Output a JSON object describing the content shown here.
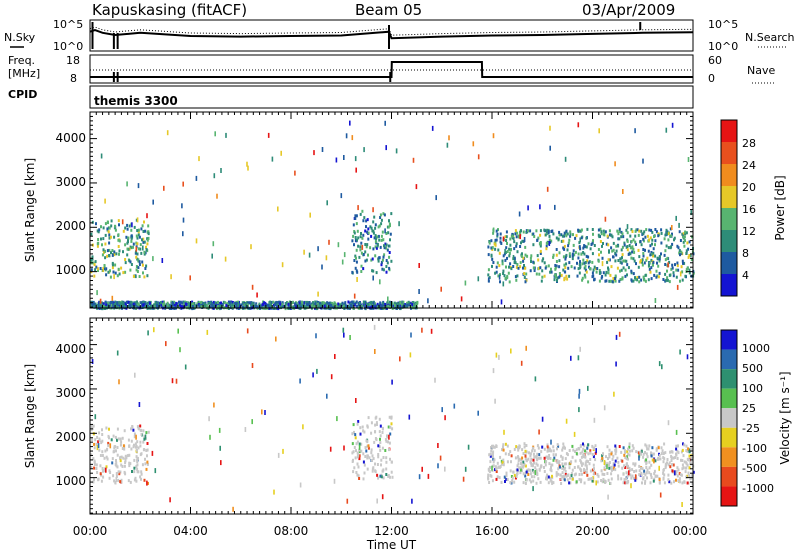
{
  "header": {
    "station": "Kapuskasing (fitACF)",
    "beam": "Beam 05",
    "date": "03/Apr/2009"
  },
  "top_panel": {
    "left_label": "N.Sky",
    "right_label": "N.Search",
    "left_ticks": [
      "10^5",
      "10^0"
    ],
    "right_ticks": [
      "10^5",
      "10^0"
    ]
  },
  "freq_panel": {
    "left_label_1": "Freq.",
    "left_label_2": "[MHz]",
    "right_label": "Nave",
    "left_ticks": [
      "18",
      "8"
    ],
    "right_ticks": [
      "60",
      "0"
    ]
  },
  "cpid": {
    "label": "CPID",
    "program": "themis 3300"
  },
  "power_panel": {
    "ylabel": "Slant Range [km]",
    "yticks": [
      "1000",
      "2000",
      "3000",
      "4000"
    ],
    "colorbar_label": "Power [dB]",
    "colorbar_ticks": [
      "4",
      "8",
      "12",
      "16",
      "20",
      "24",
      "28"
    ]
  },
  "velocity_panel": {
    "ylabel": "Slant Range [km]",
    "yticks": [
      "1000",
      "2000",
      "3000",
      "4000"
    ],
    "colorbar_label": "Velocity [m s⁻¹]",
    "colorbar_ticks": [
      "1000",
      "500",
      "100",
      "25",
      "-25",
      "-100",
      "-500",
      "-1000"
    ]
  },
  "xaxis": {
    "label": "Time UT",
    "ticks": [
      "00:00",
      "04:00",
      "08:00",
      "12:00",
      "16:00",
      "20:00",
      "00:00"
    ]
  },
  "colors": {
    "power_scale": [
      "#1414d2",
      "#1e5aa0",
      "#2e8c78",
      "#58b470",
      "#e6c828",
      "#f08c1e",
      "#e8501e",
      "#e61414"
    ],
    "velocity_scale": [
      "#1414d2",
      "#2a6ab0",
      "#2e9070",
      "#58c050",
      "#c8c8c8",
      "#e6d020",
      "#f09020",
      "#e84a1e",
      "#e61414"
    ]
  },
  "chart_data": [
    {
      "type": "line",
      "title": "N.Sky / N.Search",
      "x_unit": "hours UT",
      "xlim": [
        0,
        24
      ],
      "series": [
        {
          "name": "N.Sky",
          "x": [
            0,
            0.2,
            0.5,
            1,
            2,
            4,
            6,
            8,
            10,
            11.9,
            12,
            14,
            16,
            18,
            20,
            22,
            24
          ],
          "values": [
            3.2,
            3.5,
            3.0,
            2.6,
            3.0,
            2.4,
            2.3,
            2.4,
            2.5,
            3.2,
            2.0,
            2.3,
            2.5,
            2.6,
            2.8,
            3.0,
            3.1
          ]
        }
      ]
    },
    {
      "type": "line",
      "title": "Freq. / Nave",
      "x_unit": "hours UT",
      "xlim": [
        0,
        24
      ],
      "series": [
        {
          "name": "Freq. [MHz]",
          "x": [
            0,
            12,
            12.01,
            15.6,
            15.61,
            24
          ],
          "values": [
            10,
            10,
            16,
            16,
            10,
            10
          ]
        }
      ]
    },
    {
      "type": "heatmap",
      "title": "Power [dB]",
      "xlabel": "Time UT",
      "ylabel": "Slant Range [km]",
      "xlim": [
        0,
        24
      ],
      "ylim": [
        180,
        4600
      ],
      "clim": [
        0,
        30
      ],
      "regions": [
        {
          "t": [
            0,
            2.3
          ],
          "range": [
            900,
            2200
          ],
          "level": 11
        },
        {
          "t": [
            10.4,
            12.0
          ],
          "range": [
            1000,
            2400
          ],
          "level": 9
        },
        {
          "t": [
            15.8,
            24
          ],
          "range": [
            800,
            2000
          ],
          "level": 10
        },
        {
          "t": [
            0,
            13
          ],
          "range": [
            200,
            350
          ],
          "level": 8
        }
      ]
    },
    {
      "type": "heatmap",
      "title": "Velocity [m s⁻¹]",
      "xlabel": "Time UT",
      "ylabel": "Slant Range [km]",
      "xlim": [
        0,
        24
      ],
      "ylim": [
        180,
        4600
      ],
      "clim": [
        -1000,
        1000
      ],
      "regions": [
        {
          "t": [
            0,
            2.3
          ],
          "range": [
            900,
            2200
          ],
          "level": 0
        },
        {
          "t": [
            10.4,
            12.0
          ],
          "range": [
            1000,
            2400
          ],
          "level": 0
        },
        {
          "t": [
            15.8,
            24
          ],
          "range": [
            900,
            1800
          ],
          "level": 0
        }
      ]
    }
  ]
}
